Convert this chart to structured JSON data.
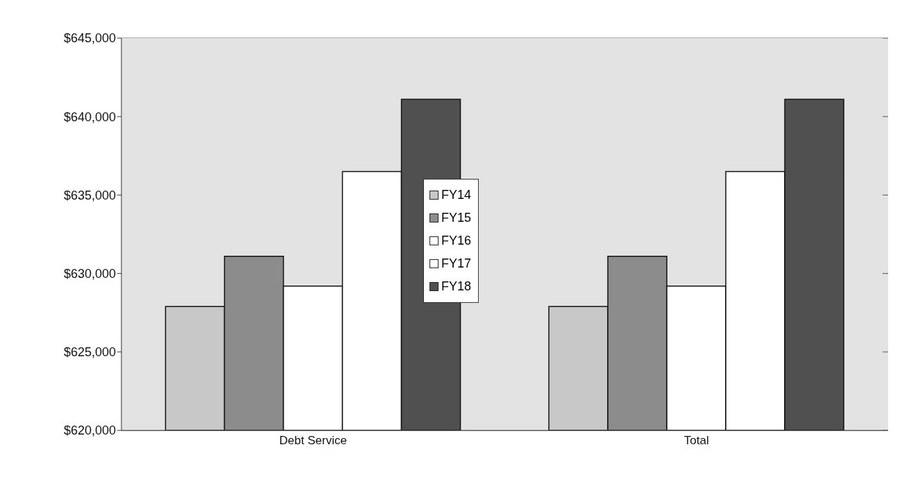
{
  "chart_data": {
    "type": "bar",
    "categories": [
      "Debt Service",
      "Total"
    ],
    "series": [
      {
        "name": "FY14",
        "color": "#c8c8c8",
        "values": [
          627900,
          627900
        ]
      },
      {
        "name": "FY15",
        "color": "#8c8c8c",
        "values": [
          631100,
          631100
        ]
      },
      {
        "name": "FY16",
        "color": "#ffffff",
        "values": [
          629200,
          629200
        ]
      },
      {
        "name": "FY17",
        "color": "#ffffff",
        "values": [
          636500,
          636500
        ]
      },
      {
        "name": "FY18",
        "color": "#505050",
        "values": [
          641100,
          641100
        ]
      }
    ],
    "ylim": [
      620000,
      645000
    ],
    "yticks": [
      {
        "value": 620000,
        "label": "$620,000"
      },
      {
        "value": 625000,
        "label": "$625,000"
      },
      {
        "value": 630000,
        "label": "$630,000"
      },
      {
        "value": 635000,
        "label": "$635,000"
      },
      {
        "value": 640000,
        "label": "$640,000"
      },
      {
        "value": 645000,
        "label": "$645,000"
      }
    ],
    "grid": "y",
    "legend": "center"
  }
}
